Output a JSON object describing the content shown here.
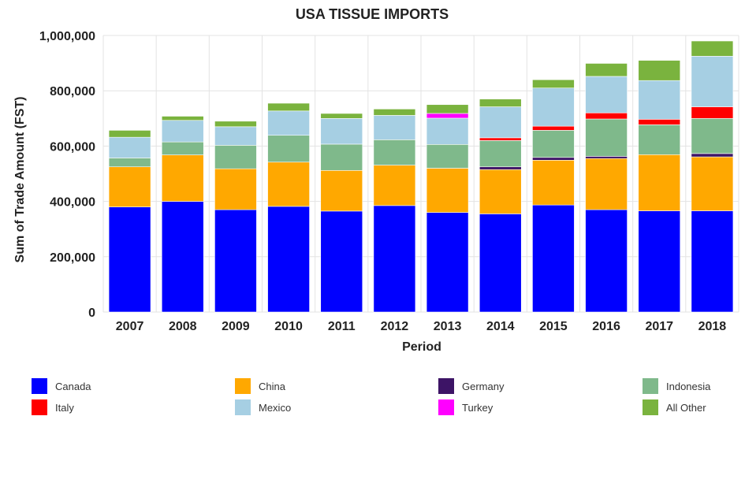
{
  "chart_data": {
    "type": "bar",
    "stacked": true,
    "title": "USA TISSUE IMPORTS",
    "xlabel": "Period",
    "ylabel": "Sum of Trade Amount (FST)",
    "ylim": [
      0,
      1000000
    ],
    "yticks": [
      0,
      200000,
      400000,
      600000,
      800000,
      1000000
    ],
    "ytick_labels": [
      "0",
      "200,000",
      "400,000",
      "600,000",
      "800,000",
      "1,000,000"
    ],
    "grid": true,
    "legend_position": "bottom",
    "categories": [
      "2007",
      "2008",
      "2009",
      "2010",
      "2011",
      "2012",
      "2013",
      "2014",
      "2015",
      "2016",
      "2017",
      "2018"
    ],
    "series": [
      {
        "name": "Canada",
        "color": "#0000ff",
        "values": [
          380000,
          400000,
          370000,
          382000,
          365000,
          385000,
          360000,
          355000,
          387000,
          370000,
          366000,
          366000
        ]
      },
      {
        "name": "China",
        "color": "#ffa800",
        "values": [
          145000,
          168000,
          148000,
          160000,
          147000,
          146000,
          160000,
          160000,
          162000,
          185000,
          203000,
          195000
        ]
      },
      {
        "name": "Germany",
        "color": "#3d1466",
        "values": [
          0,
          0,
          0,
          0,
          0,
          0,
          0,
          10000,
          10000,
          8000,
          0,
          12000
        ]
      },
      {
        "name": "Indonesia",
        "color": "#7fb98b",
        "values": [
          32000,
          47000,
          85000,
          97000,
          95000,
          92000,
          86000,
          95000,
          98000,
          135000,
          108000,
          127000
        ]
      },
      {
        "name": "Italy",
        "color": "#ff0000",
        "values": [
          0,
          0,
          0,
          0,
          0,
          0,
          0,
          10000,
          15000,
          22000,
          20000,
          42000
        ]
      },
      {
        "name": "Mexico",
        "color": "#a6cfe3",
        "values": [
          75000,
          78000,
          67000,
          88000,
          93000,
          88000,
          95000,
          112000,
          138000,
          132000,
          140000,
          183000
        ]
      },
      {
        "name": "Turkey",
        "color": "#ff00ff",
        "values": [
          0,
          0,
          0,
          0,
          0,
          0,
          17000,
          0,
          0,
          0,
          0,
          0
        ]
      },
      {
        "name": "All Other",
        "color": "#7ab33e",
        "values": [
          25000,
          15000,
          20000,
          28000,
          18000,
          23000,
          32000,
          28000,
          30000,
          47000,
          73000,
          55000
        ]
      }
    ]
  }
}
